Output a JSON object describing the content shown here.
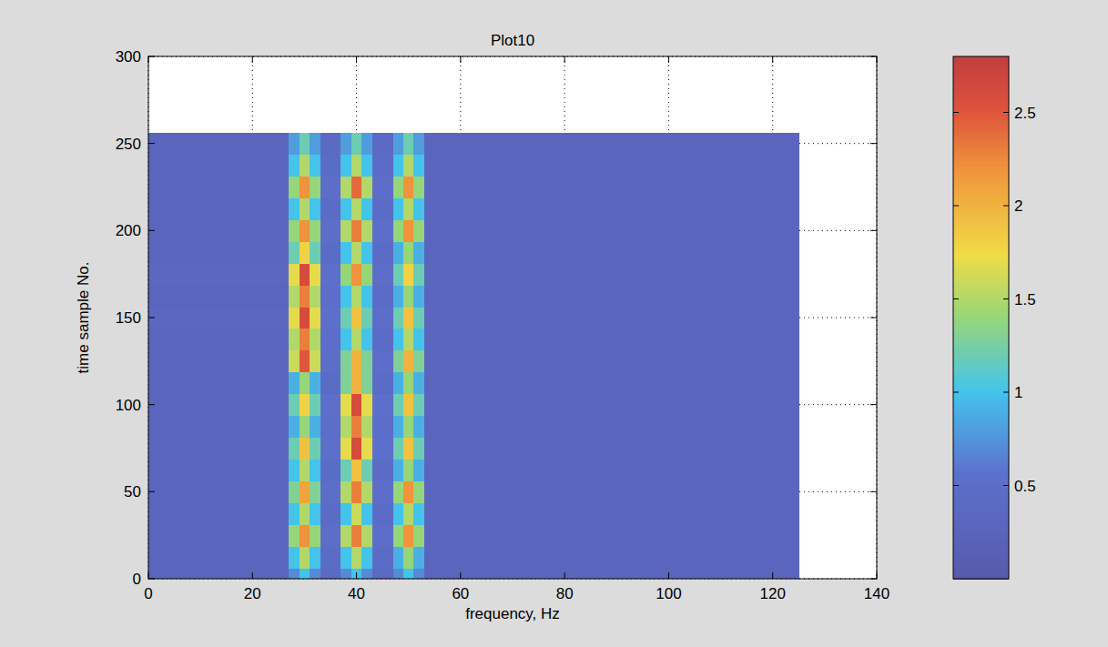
{
  "chart_data": {
    "type": "heatmap",
    "title": "Plot10",
    "x_label": "frequency, Hz",
    "y_label": "time sample No.",
    "xlim": [
      0,
      140
    ],
    "ylim": [
      0,
      300
    ],
    "xticks": [
      0,
      20,
      40,
      60,
      80,
      100,
      120,
      140
    ],
    "yticks": [
      0,
      50,
      100,
      150,
      200,
      250,
      300
    ],
    "grid": true,
    "x_edges": [
      0,
      27,
      29,
      31,
      33,
      37,
      39,
      41,
      43,
      47,
      49,
      51,
      53,
      125
    ],
    "y_edges": [
      0,
      6.25,
      18.75,
      31.25,
      43.75,
      56.25,
      68.75,
      81.25,
      93.75,
      106.25,
      118.75,
      131.25,
      143.75,
      156.25,
      168.75,
      181.25,
      193.75,
      206.25,
      218.75,
      231.25,
      243.75,
      256
    ],
    "cells": [
      [
        0.3,
        0.7,
        1.0,
        0.7,
        0.4,
        0.7,
        1.0,
        0.7,
        0.4,
        0.7,
        1.0,
        0.7,
        0.3
      ],
      [
        0.3,
        1.0,
        1.5,
        1.0,
        0.45,
        1.0,
        1.5,
        1.0,
        0.45,
        0.9,
        1.4,
        0.9,
        0.3
      ],
      [
        0.3,
        1.4,
        2.2,
        1.4,
        0.5,
        1.5,
        2.3,
        1.5,
        0.5,
        1.4,
        2.2,
        1.4,
        0.3
      ],
      [
        0.3,
        1.0,
        1.5,
        1.0,
        0.45,
        1.0,
        1.6,
        1.0,
        0.45,
        1.0,
        1.5,
        1.0,
        0.3
      ],
      [
        0.3,
        1.3,
        2.1,
        1.3,
        0.5,
        1.5,
        2.3,
        1.5,
        0.5,
        1.4,
        2.2,
        1.4,
        0.3
      ],
      [
        0.3,
        1.0,
        1.5,
        1.0,
        0.45,
        1.2,
        1.9,
        1.2,
        0.45,
        0.9,
        1.4,
        0.9,
        0.3
      ],
      [
        0.3,
        1.2,
        1.9,
        1.2,
        0.55,
        1.7,
        2.6,
        1.7,
        0.55,
        1.2,
        1.9,
        1.2,
        0.3
      ],
      [
        0.3,
        0.9,
        1.4,
        0.9,
        0.5,
        1.5,
        2.3,
        1.5,
        0.5,
        0.9,
        1.4,
        0.9,
        0.3
      ],
      [
        0.3,
        1.2,
        1.8,
        1.2,
        0.55,
        1.7,
        2.6,
        1.7,
        0.55,
        1.2,
        1.9,
        1.2,
        0.3
      ],
      [
        0.3,
        0.9,
        1.4,
        0.9,
        0.45,
        1.3,
        2.0,
        1.3,
        0.45,
        0.9,
        1.4,
        0.9,
        0.3
      ],
      [
        0.3,
        1.6,
        2.5,
        1.6,
        0.5,
        1.3,
        2.0,
        1.3,
        0.5,
        1.3,
        2.0,
        1.3,
        0.3
      ],
      [
        0.3,
        1.5,
        2.3,
        1.5,
        0.5,
        1.0,
        1.5,
        1.0,
        0.45,
        1.0,
        1.5,
        1.0,
        0.3
      ],
      [
        0.35,
        1.7,
        2.6,
        1.7,
        0.55,
        1.2,
        1.9,
        1.2,
        0.5,
        1.2,
        1.9,
        1.2,
        0.3
      ],
      [
        0.3,
        1.5,
        2.3,
        1.5,
        0.5,
        1.0,
        1.5,
        1.0,
        0.45,
        0.9,
        1.4,
        0.9,
        0.3
      ],
      [
        0.35,
        1.7,
        2.6,
        1.7,
        0.55,
        1.4,
        2.2,
        1.4,
        0.5,
        1.2,
        1.8,
        1.2,
        0.3
      ],
      [
        0.3,
        1.2,
        1.8,
        1.2,
        0.45,
        1.0,
        1.5,
        1.0,
        0.45,
        0.9,
        1.4,
        0.9,
        0.3
      ],
      [
        0.3,
        1.4,
        2.2,
        1.4,
        0.5,
        1.5,
        2.3,
        1.5,
        0.5,
        1.4,
        2.2,
        1.4,
        0.3
      ],
      [
        0.3,
        1.0,
        1.5,
        1.0,
        0.45,
        1.0,
        1.5,
        1.0,
        0.45,
        1.0,
        1.5,
        1.0,
        0.3
      ],
      [
        0.3,
        1.4,
        2.2,
        1.4,
        0.5,
        1.5,
        2.4,
        1.5,
        0.5,
        1.4,
        2.2,
        1.4,
        0.3
      ],
      [
        0.3,
        1.0,
        1.5,
        1.0,
        0.45,
        1.0,
        1.5,
        1.0,
        0.45,
        1.0,
        1.5,
        1.0,
        0.3
      ],
      [
        0.3,
        0.8,
        1.2,
        0.8,
        0.4,
        0.8,
        1.2,
        0.8,
        0.4,
        0.8,
        1.2,
        0.8,
        0.3
      ]
    ],
    "colorbar_range": [
      0,
      2.8
    ],
    "colorbar_ticks": [
      0.5,
      1,
      1.5,
      2,
      2.5
    ]
  }
}
